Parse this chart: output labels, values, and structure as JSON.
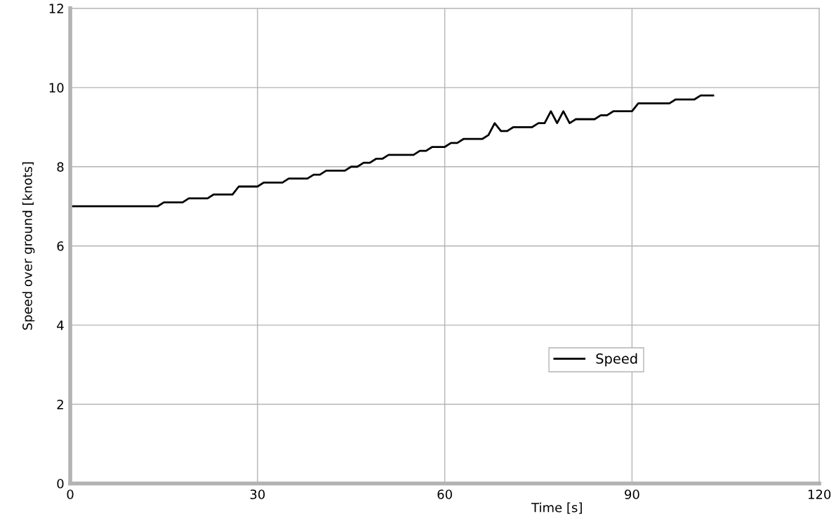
{
  "chart_data": {
    "type": "line",
    "xlabel": "Time [s]",
    "ylabel": "Speed over ground [knots]",
    "x": [
      0,
      1,
      2,
      3,
      4,
      5,
      6,
      7,
      8,
      9,
      10,
      11,
      12,
      13,
      14,
      15,
      16,
      17,
      18,
      19,
      20,
      21,
      22,
      23,
      24,
      25,
      26,
      27,
      28,
      29,
      30,
      31,
      32,
      33,
      34,
      35,
      36,
      37,
      38,
      39,
      40,
      41,
      42,
      43,
      44,
      45,
      46,
      47,
      48,
      49,
      50,
      51,
      52,
      53,
      54,
      55,
      56,
      57,
      58,
      59,
      60,
      61,
      62,
      63,
      64,
      65,
      66,
      67,
      68,
      69,
      70,
      71,
      72,
      73,
      74,
      75,
      76,
      77,
      78,
      79,
      80,
      81,
      82,
      83,
      84,
      85,
      86,
      87,
      88,
      89,
      90,
      91,
      92,
      93,
      94,
      95,
      96,
      97,
      98,
      99,
      100,
      101,
      102,
      103
    ],
    "series": [
      {
        "name": "Speed",
        "color": "#000000",
        "values": [
          7.0,
          7.0,
          7.0,
          7.0,
          7.0,
          7.0,
          7.0,
          7.0,
          7.0,
          7.0,
          7.0,
          7.0,
          7.0,
          7.0,
          7.0,
          7.1,
          7.1,
          7.1,
          7.1,
          7.2,
          7.2,
          7.2,
          7.2,
          7.3,
          7.3,
          7.3,
          7.3,
          7.5,
          7.5,
          7.5,
          7.5,
          7.6,
          7.6,
          7.6,
          7.6,
          7.7,
          7.7,
          7.7,
          7.7,
          7.8,
          7.8,
          7.9,
          7.9,
          7.9,
          7.9,
          8.0,
          8.0,
          8.1,
          8.1,
          8.2,
          8.2,
          8.3,
          8.3,
          8.3,
          8.3,
          8.3,
          8.4,
          8.4,
          8.5,
          8.5,
          8.5,
          8.6,
          8.6,
          8.7,
          8.7,
          8.7,
          8.7,
          8.8,
          9.1,
          8.9,
          8.9,
          9.0,
          9.0,
          9.0,
          9.0,
          9.1,
          9.1,
          9.4,
          9.1,
          9.4,
          9.1,
          9.2,
          9.2,
          9.2,
          9.2,
          9.3,
          9.3,
          9.4,
          9.4,
          9.4,
          9.4,
          9.6,
          9.6,
          9.6,
          9.6,
          9.6,
          9.6,
          9.7,
          9.7,
          9.7,
          9.7,
          9.8,
          9.8,
          9.8
        ]
      }
    ],
    "xlim": [
      0,
      120
    ],
    "xticks": [
      0,
      30,
      60,
      90,
      120
    ],
    "ylim": [
      0,
      12
    ],
    "yticks": [
      0,
      2,
      4,
      6,
      8,
      10,
      12
    ],
    "grid": true,
    "legend": "bottom right",
    "marker": "none",
    "line_style": "solid"
  }
}
